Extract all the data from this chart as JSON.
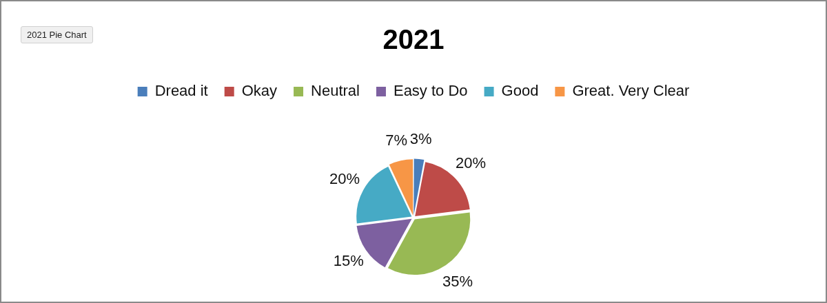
{
  "chart_data": {
    "type": "pie",
    "title": "2021",
    "categories": [
      "Dread it",
      "Okay",
      "Neutral",
      "Easy to Do",
      "Good",
      "Great. Very Clear"
    ],
    "values": [
      3,
      20,
      35,
      15,
      20,
      7
    ],
    "colors": [
      "#4a7ebb",
      "#be4b48",
      "#98b954",
      "#7d60a0",
      "#46aac5",
      "#f79646"
    ],
    "value_labels": [
      "3%",
      "20%",
      "35%",
      "15%",
      "20%",
      "7%"
    ],
    "legend": "top",
    "annotations": [
      "2021 Pie Chart"
    ]
  }
}
